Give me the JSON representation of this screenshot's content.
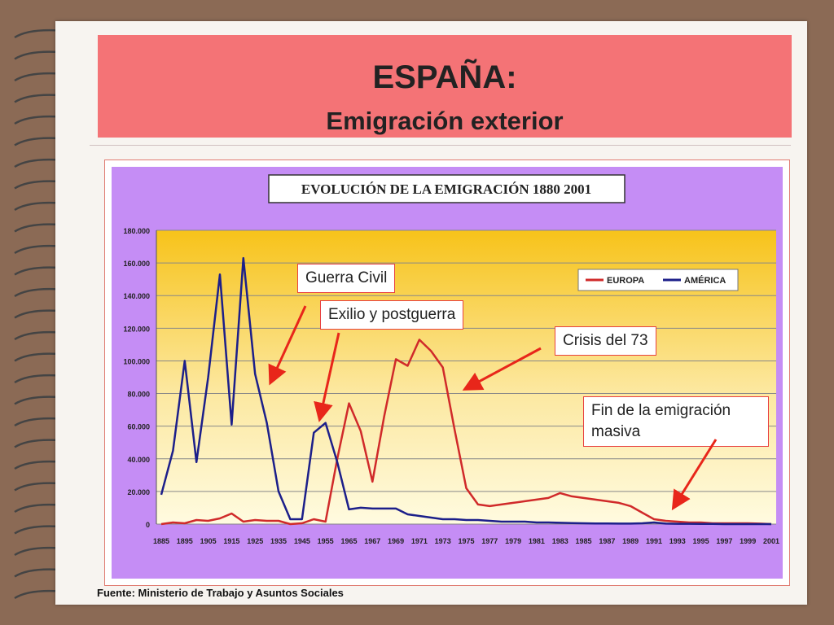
{
  "title": "ESPAÑA:",
  "subtitle": "Emigración exterior",
  "source": "Fuente: Ministerio de Trabajo y Asuntos Sociales",
  "callouts": {
    "guerra": "Guerra Civil",
    "exilio": "Exilio y postguerra",
    "crisis": "Crisis del 73",
    "fin": "Fin de la emigración masiva"
  },
  "colors": {
    "europa": "#d02a2a",
    "america": "#1c1f8a",
    "frame_bg": "#c58df5",
    "arrow": "#e8261a"
  },
  "chart_data": {
    "type": "line",
    "title": "EVOLUCIÓN DE LA EMIGRACIÓN 1880 2001",
    "ylim": [
      0,
      180000
    ],
    "yticks": [
      "0",
      "20.000",
      "40.000",
      "60.000",
      "80.000",
      "100.000",
      "120.000",
      "140.000",
      "160.000",
      "180.000"
    ],
    "xticks": [
      "1885",
      "1895",
      "1905",
      "1915",
      "1925",
      "1935",
      "1945",
      "1955",
      "1965",
      "1967",
      "1969",
      "1971",
      "1973",
      "1975",
      "1977",
      "1979",
      "1981",
      "1983",
      "1985",
      "1987",
      "1989",
      "1991",
      "1993",
      "1995",
      "1997",
      "1999",
      "2001"
    ],
    "legend": "top-right",
    "grid": true,
    "series": [
      {
        "name": "EUROPA",
        "values": [
          [
            0,
            0
          ],
          [
            1,
            1000
          ],
          [
            2,
            500
          ],
          [
            3,
            2500
          ],
          [
            4,
            2000
          ],
          [
            5,
            3500
          ],
          [
            6,
            6500
          ],
          [
            7,
            1500
          ],
          [
            8,
            2500
          ],
          [
            9,
            2000
          ],
          [
            10,
            2000
          ],
          [
            11,
            0
          ],
          [
            12,
            500
          ],
          [
            13,
            3000
          ],
          [
            14,
            1500
          ],
          [
            15,
            40000
          ],
          [
            16,
            74000
          ],
          [
            17,
            57000
          ],
          [
            18,
            26000
          ],
          [
            19,
            66000
          ],
          [
            20,
            101000
          ],
          [
            21,
            97000
          ],
          [
            22,
            113000
          ],
          [
            23,
            106000
          ],
          [
            24,
            96000
          ],
          [
            25,
            58000
          ],
          [
            26,
            22000
          ],
          [
            27,
            12000
          ],
          [
            28,
            11000
          ],
          [
            29,
            12000
          ],
          [
            30,
            13000
          ],
          [
            31,
            14000
          ],
          [
            32,
            15000
          ],
          [
            33,
            16000
          ],
          [
            34,
            19000
          ],
          [
            35,
            17000
          ],
          [
            36,
            16000
          ],
          [
            37,
            15000
          ],
          [
            38,
            14000
          ],
          [
            39,
            13000
          ],
          [
            40,
            11000
          ],
          [
            41,
            7000
          ],
          [
            42,
            3000
          ],
          [
            43,
            2000
          ],
          [
            44,
            1500
          ],
          [
            45,
            1000
          ],
          [
            46,
            1000
          ],
          [
            47,
            500
          ],
          [
            48,
            500
          ],
          [
            49,
            500
          ],
          [
            50,
            500
          ],
          [
            51,
            300
          ],
          [
            52,
            0
          ]
        ]
      },
      {
        "name": "AMÉRICA",
        "values": [
          [
            0,
            18000
          ],
          [
            1,
            45000
          ],
          [
            2,
            100000
          ],
          [
            3,
            38000
          ],
          [
            4,
            90000
          ],
          [
            5,
            153000
          ],
          [
            6,
            61000
          ],
          [
            7,
            163000
          ],
          [
            8,
            92000
          ],
          [
            9,
            62000
          ],
          [
            10,
            20000
          ],
          [
            11,
            3000
          ],
          [
            12,
            3000
          ],
          [
            13,
            56000
          ],
          [
            14,
            62000
          ],
          [
            15,
            38000
          ],
          [
            16,
            9000
          ],
          [
            17,
            10000
          ],
          [
            18,
            9500
          ],
          [
            19,
            9500
          ],
          [
            20,
            9500
          ],
          [
            21,
            6000
          ],
          [
            22,
            5000
          ],
          [
            23,
            4000
          ],
          [
            24,
            3000
          ],
          [
            25,
            3000
          ],
          [
            26,
            2500
          ],
          [
            27,
            2500
          ],
          [
            28,
            2000
          ],
          [
            29,
            1500
          ],
          [
            30,
            1500
          ],
          [
            31,
            1500
          ],
          [
            32,
            1000
          ],
          [
            33,
            1000
          ],
          [
            34,
            800
          ],
          [
            35,
            600
          ],
          [
            36,
            500
          ],
          [
            37,
            400
          ],
          [
            38,
            400
          ],
          [
            39,
            300
          ],
          [
            40,
            300
          ],
          [
            41,
            500
          ],
          [
            42,
            1000
          ],
          [
            43,
            300
          ],
          [
            44,
            200
          ],
          [
            45,
            200
          ],
          [
            46,
            100
          ],
          [
            47,
            100
          ],
          [
            48,
            0
          ],
          [
            49,
            0
          ],
          [
            50,
            0
          ],
          [
            51,
            0
          ],
          [
            52,
            0
          ]
        ]
      }
    ]
  }
}
